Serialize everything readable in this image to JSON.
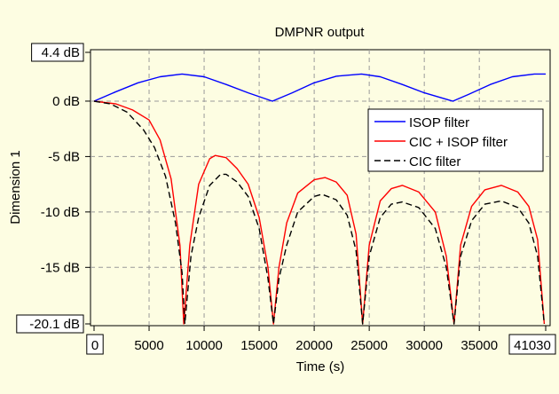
{
  "chart_data": {
    "type": "line",
    "title": "DMPNR output",
    "xlabel": "Time (s)",
    "ylabel": "Dimension 1",
    "xlim": [
      0,
      41030
    ],
    "ylim": [
      -20.1,
      4.4
    ],
    "x_ticks": [
      0,
      5000,
      10000,
      15000,
      20000,
      25000,
      30000,
      35000,
      41030
    ],
    "x_tick_labels": [
      "0",
      "5000",
      "10000",
      "15000",
      "20000",
      "25000",
      "30000",
      "35000",
      "41030"
    ],
    "y_ticks": [
      4.4,
      0,
      -5,
      -10,
      -15,
      -20.1
    ],
    "y_tick_labels": [
      "4.4 dB",
      "0 dB",
      "-5 dB",
      "-10 dB",
      "-15 dB",
      "-20.1 dB"
    ],
    "grid": true,
    "legend_position": "right",
    "series": [
      {
        "name": "ISOP filter",
        "color": "#0000ff",
        "dash": "solid",
        "points": [
          [
            0,
            0
          ],
          [
            2000,
            0.85
          ],
          [
            4000,
            1.65
          ],
          [
            6000,
            2.2
          ],
          [
            8000,
            2.45
          ],
          [
            10000,
            2.2
          ],
          [
            12000,
            1.5
          ],
          [
            14000,
            0.75
          ],
          [
            16200,
            0
          ],
          [
            18000,
            0.75
          ],
          [
            20000,
            1.65
          ],
          [
            22000,
            2.25
          ],
          [
            24300,
            2.45
          ],
          [
            26000,
            2.2
          ],
          [
            28000,
            1.5
          ],
          [
            30000,
            0.75
          ],
          [
            32600,
            0
          ],
          [
            34000,
            0.6
          ],
          [
            36000,
            1.5
          ],
          [
            38000,
            2.2
          ],
          [
            40000,
            2.45
          ],
          [
            41030,
            2.45
          ]
        ]
      },
      {
        "name": "CIC + ISOP filter",
        "color": "#ff0000",
        "dash": "solid",
        "points": [
          [
            0,
            0
          ],
          [
            2000,
            -0.25
          ],
          [
            3500,
            -0.8
          ],
          [
            5000,
            -1.7
          ],
          [
            6000,
            -3.5
          ],
          [
            7000,
            -7
          ],
          [
            7800,
            -13
          ],
          [
            8150,
            -20.1
          ],
          [
            8700,
            -13
          ],
          [
            9500,
            -7.5
          ],
          [
            10500,
            -5.2
          ],
          [
            11000,
            -4.9
          ],
          [
            12000,
            -5.1
          ],
          [
            13000,
            -6.1
          ],
          [
            14000,
            -7.5
          ],
          [
            15000,
            -10.5
          ],
          [
            15800,
            -15
          ],
          [
            16300,
            -20.1
          ],
          [
            16800,
            -15
          ],
          [
            17500,
            -11
          ],
          [
            18500,
            -8.3
          ],
          [
            20000,
            -7.1
          ],
          [
            21000,
            -6.9
          ],
          [
            22000,
            -7.3
          ],
          [
            23000,
            -8.5
          ],
          [
            23800,
            -12
          ],
          [
            24400,
            -20.1
          ],
          [
            25000,
            -13
          ],
          [
            26000,
            -9
          ],
          [
            27000,
            -7.9
          ],
          [
            28000,
            -7.6
          ],
          [
            29500,
            -8.2
          ],
          [
            31000,
            -10
          ],
          [
            32000,
            -14
          ],
          [
            32700,
            -20.1
          ],
          [
            33300,
            -13
          ],
          [
            34300,
            -9.5
          ],
          [
            35500,
            -8
          ],
          [
            37000,
            -7.6
          ],
          [
            38500,
            -8.2
          ],
          [
            39500,
            -9.5
          ],
          [
            40300,
            -12.5
          ],
          [
            40900,
            -20.1
          ]
        ]
      },
      {
        "name": "CIC filter",
        "color": "#000000",
        "dash": "dashed",
        "points": [
          [
            0,
            0
          ],
          [
            1500,
            -0.25
          ],
          [
            3000,
            -1
          ],
          [
            4500,
            -2.6
          ],
          [
            5500,
            -4.2
          ],
          [
            6500,
            -6.8
          ],
          [
            7400,
            -11
          ],
          [
            8000,
            -15.5
          ],
          [
            8250,
            -20.1
          ],
          [
            8800,
            -14
          ],
          [
            9500,
            -10.5
          ],
          [
            10500,
            -7.6
          ],
          [
            11500,
            -6.6
          ],
          [
            12000,
            -6.6
          ],
          [
            13000,
            -7.3
          ],
          [
            14000,
            -8.6
          ],
          [
            15000,
            -11.5
          ],
          [
            15800,
            -16
          ],
          [
            16300,
            -20.1
          ],
          [
            16800,
            -16
          ],
          [
            17500,
            -13
          ],
          [
            18500,
            -10
          ],
          [
            20000,
            -8.6
          ],
          [
            20700,
            -8.4
          ],
          [
            22000,
            -8.9
          ],
          [
            23000,
            -10.3
          ],
          [
            23800,
            -13.5
          ],
          [
            24400,
            -20.1
          ],
          [
            25000,
            -14
          ],
          [
            26000,
            -10.5
          ],
          [
            27000,
            -9.3
          ],
          [
            28000,
            -9.1
          ],
          [
            29500,
            -9.6
          ],
          [
            31000,
            -11.5
          ],
          [
            32000,
            -15
          ],
          [
            32700,
            -20.1
          ],
          [
            33300,
            -14
          ],
          [
            34300,
            -10.8
          ],
          [
            35500,
            -9.3
          ],
          [
            37000,
            -9
          ],
          [
            38500,
            -9.6
          ],
          [
            39500,
            -11
          ],
          [
            40300,
            -14
          ],
          [
            40900,
            -20.1
          ]
        ]
      }
    ]
  }
}
